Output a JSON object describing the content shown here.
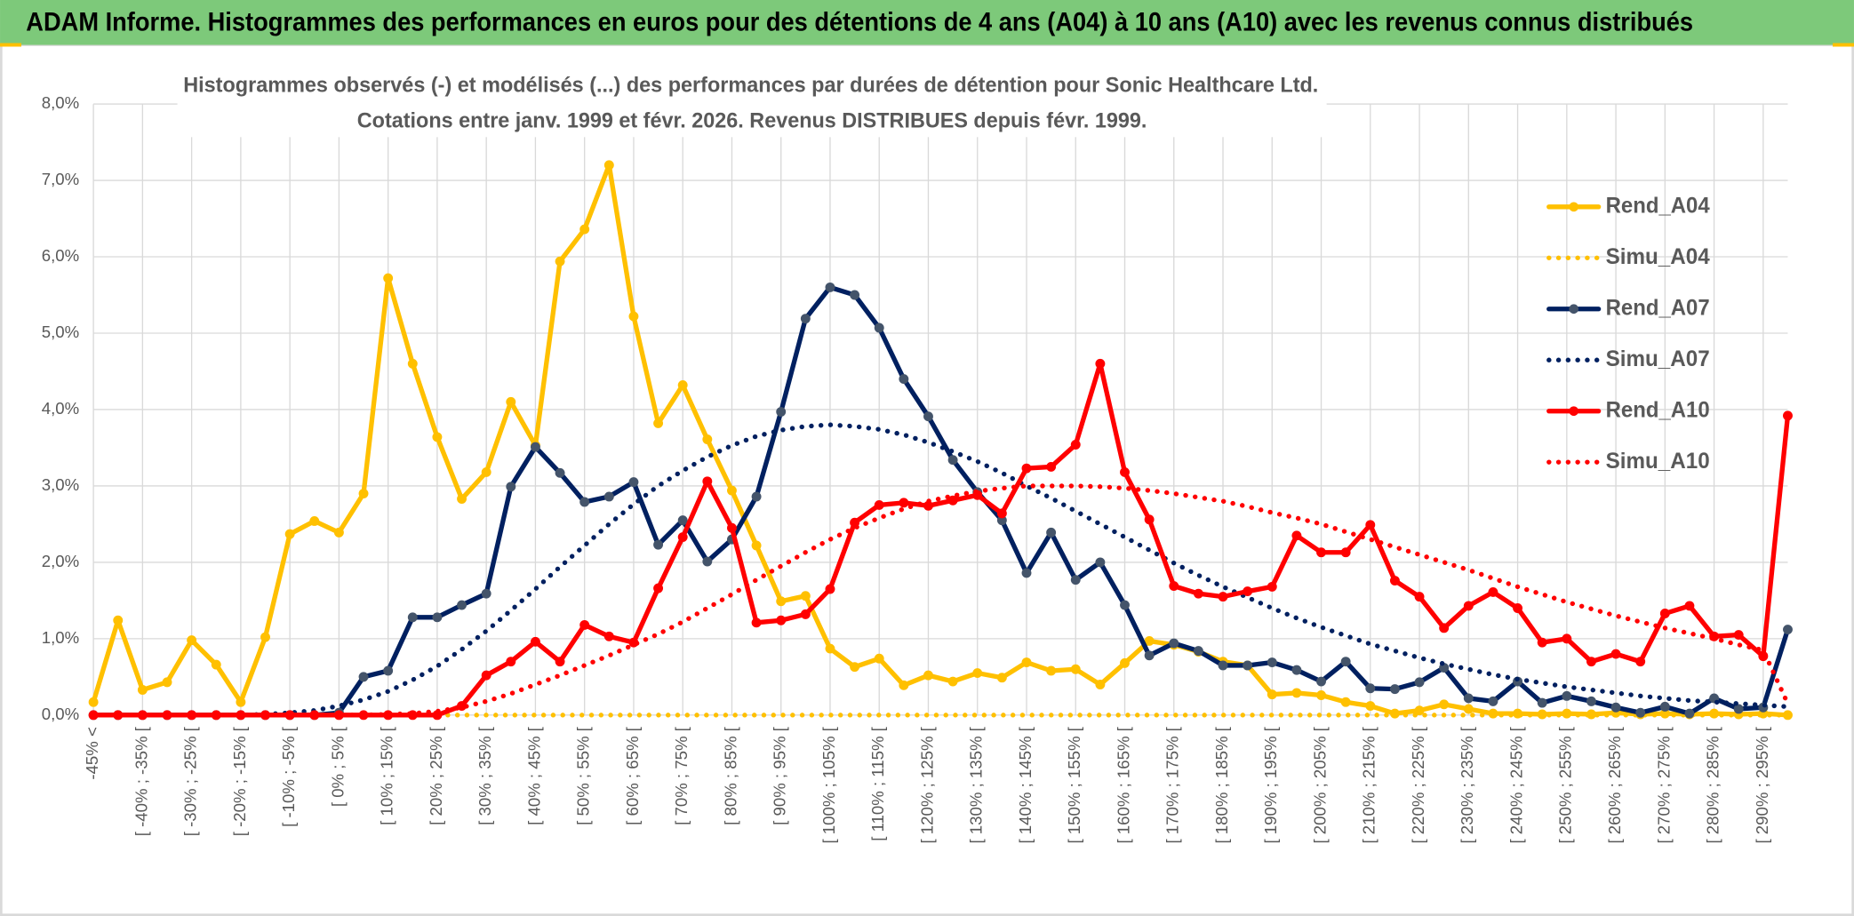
{
  "chart_data": {
    "type": "line",
    "header": "ADAM Informe. Histogrammes des performances en euros pour des détentions de 4 ans (A04) à 10 ans (A10) avec les revenus connus distribués",
    "title": "Histogrammes observés (-) et modélisés (...) des performances par durées de détention pour Sonic Healthcare Ltd.",
    "subtitle": "Cotations entre janv. 1999 et févr. 2026. Revenus DISTRIBUES depuis févr. 1999.",
    "categories": [
      "-45% <",
      null,
      "[ -40% ; -35% [",
      null,
      "[ -30% ; -25% [",
      null,
      "[ -20% ; -15% [",
      null,
      "[ -10% ; -5% [",
      null,
      "[ 0% ; 5% [",
      null,
      "[ 10% ; 15% [",
      null,
      "[ 20% ; 25% [",
      null,
      "[ 30% ; 35% [",
      null,
      "[ 40% ; 45% [",
      null,
      "[ 50% ; 55% [",
      null,
      "[ 60% ; 65% [",
      null,
      "[ 70% ; 75% [",
      null,
      "[ 80% ; 85% [",
      null,
      "[ 90% ; 95% [",
      null,
      "[ 100% ; 105% [",
      null,
      "[ 110% ; 115% [",
      null,
      "[ 120% ; 125% [",
      null,
      "[ 130% ; 135% [",
      null,
      "[ 140% ; 145% [",
      null,
      "[ 150% ; 155% [",
      null,
      "[ 160% ; 165% [",
      null,
      "[ 170% ; 175% [",
      null,
      "[ 180% ; 185% [",
      null,
      "[ 190% ; 195% [",
      null,
      "[ 200% ; 205% [",
      null,
      "[ 210% ; 215% [",
      null,
      "[ 220% ; 225% [",
      null,
      "[ 230% ; 235% [",
      null,
      "[ 240% ; 245% [",
      null,
      "[ 250% ; 255% [",
      null,
      "[ 260% ; 265% [",
      null,
      "[ 270% ; 275% [",
      null,
      "[ 280% ; 285% [",
      null,
      "[ 290% ; 295% [",
      null
    ],
    "series": [
      {
        "name": "Rend_A04",
        "color": "#ffc000",
        "line_style": "solid",
        "markers": true,
        "values": [
          0.17,
          1.24,
          0.33,
          0.43,
          0.98,
          0.66,
          0.17,
          1.02,
          2.37,
          2.54,
          2.39,
          2.9,
          5.72,
          4.6,
          3.64,
          2.83,
          3.18,
          4.1,
          3.53,
          5.94,
          6.36,
          7.2,
          5.22,
          3.82,
          4.32,
          3.61,
          2.94,
          2.22,
          1.49,
          1.56,
          0.87,
          0.63,
          0.74,
          0.39,
          0.52,
          0.44,
          0.55,
          0.49,
          0.69,
          0.58,
          0.6,
          0.4,
          0.68,
          0.97,
          0.92,
          0.83,
          0.7,
          0.65,
          0.27,
          0.29,
          0.26,
          0.17,
          0.12,
          0.02,
          0.06,
          0.14,
          0.08,
          0.02,
          0.02,
          0.01,
          0.02,
          0.01,
          0.03,
          0.01,
          0.02,
          0.01,
          0.02,
          0.01,
          0.02,
          0.0
        ]
      },
      {
        "name": "Simu_A04",
        "color": "#ffc000",
        "line_style": "dotted",
        "markers": false,
        "values": [
          0,
          0,
          0,
          0,
          0,
          0,
          0,
          0,
          0,
          0,
          0,
          0,
          0,
          0,
          0,
          0,
          0,
          0,
          0,
          0,
          0,
          0,
          0,
          0,
          0,
          0,
          0,
          0,
          0,
          0,
          0,
          0,
          0,
          0,
          0,
          0,
          0,
          0,
          0,
          0,
          0,
          0,
          0,
          0,
          0,
          0,
          0,
          0,
          0,
          0,
          0,
          0,
          0,
          0,
          0,
          0,
          0,
          0,
          0,
          0,
          0,
          0,
          0,
          0,
          0,
          0,
          0,
          0,
          0,
          0
        ]
      },
      {
        "name": "Rend_A07",
        "color": "#002060",
        "marker_color": "#44546a",
        "line_style": "solid",
        "markers": true,
        "values": [
          0,
          0,
          0,
          0,
          0,
          0,
          0,
          0,
          0,
          0,
          0.03,
          0.5,
          0.58,
          1.28,
          1.28,
          1.44,
          1.59,
          2.99,
          3.51,
          3.17,
          2.79,
          2.86,
          3.05,
          2.23,
          2.55,
          2.01,
          2.3,
          2.86,
          3.97,
          5.19,
          5.6,
          5.5,
          5.07,
          4.4,
          3.91,
          3.34,
          2.92,
          2.55,
          1.86,
          2.39,
          1.77,
          2.0,
          1.44,
          0.78,
          0.94,
          0.84,
          0.65,
          0.65,
          0.69,
          0.59,
          0.44,
          0.7,
          0.35,
          0.34,
          0.43,
          0.62,
          0.22,
          0.18,
          0.44,
          0.16,
          0.25,
          0.18,
          0.1,
          0.03,
          0.11,
          0.02,
          0.22,
          0.08,
          0.1,
          1.12
        ]
      },
      {
        "name": "Simu_A07",
        "color": "#002060",
        "line_style": "dotted",
        "markers": false,
        "values": [
          0,
          0,
          0,
          0,
          0,
          0,
          0,
          0.01,
          0.03,
          0.06,
          0.12,
          0.2,
          0.31,
          0.46,
          0.64,
          0.86,
          1.1,
          1.37,
          1.65,
          1.94,
          2.22,
          2.5,
          2.76,
          3.0,
          3.2,
          3.38,
          3.53,
          3.65,
          3.73,
          3.78,
          3.8,
          3.78,
          3.74,
          3.67,
          3.57,
          3.45,
          3.32,
          3.17,
          3.0,
          2.84,
          2.67,
          2.5,
          2.33,
          2.16,
          1.99,
          1.83,
          1.68,
          1.54,
          1.4,
          1.27,
          1.15,
          1.04,
          0.93,
          0.84,
          0.75,
          0.67,
          0.6,
          0.53,
          0.47,
          0.42,
          0.37,
          0.33,
          0.29,
          0.25,
          0.22,
          0.19,
          0.17,
          0.15,
          0.13,
          0.11
        ]
      },
      {
        "name": "Rend_A10",
        "color": "#ff0000",
        "line_style": "solid",
        "markers": true,
        "values": [
          0,
          0,
          0,
          0,
          0,
          0,
          0,
          0,
          0,
          0,
          0,
          0,
          0,
          0,
          0,
          0.12,
          0.52,
          0.7,
          0.96,
          0.7,
          1.18,
          1.03,
          0.95,
          1.66,
          2.33,
          3.06,
          2.45,
          1.21,
          1.24,
          1.32,
          1.65,
          2.52,
          2.75,
          2.78,
          2.74,
          2.81,
          2.88,
          2.64,
          3.23,
          3.25,
          3.54,
          4.6,
          3.18,
          2.56,
          1.69,
          1.59,
          1.55,
          1.62,
          1.68,
          2.35,
          2.13,
          2.13,
          2.49,
          1.76,
          1.55,
          1.14,
          1.43,
          1.61,
          1.4,
          0.95,
          1.0,
          0.7,
          0.8,
          0.7,
          1.33,
          1.43,
          1.03,
          1.05,
          0.77,
          3.92
        ]
      },
      {
        "name": "Simu_A10",
        "color": "#ff0000",
        "line_style": "dotted",
        "markers": false,
        "values": [
          0,
          0,
          0,
          0,
          0,
          0,
          0,
          0,
          0,
          0,
          0,
          0,
          0.01,
          0.02,
          0.05,
          0.1,
          0.18,
          0.28,
          0.4,
          0.52,
          0.65,
          0.78,
          0.92,
          1.06,
          1.22,
          1.4,
          1.58,
          1.77,
          1.95,
          2.13,
          2.3,
          2.45,
          2.58,
          2.7,
          2.8,
          2.87,
          2.93,
          2.97,
          3.0,
          3.0,
          3.0,
          2.99,
          2.97,
          2.94,
          2.9,
          2.85,
          2.8,
          2.73,
          2.65,
          2.58,
          2.5,
          2.4,
          2.3,
          2.2,
          2.1,
          2.0,
          1.9,
          1.79,
          1.68,
          1.58,
          1.48,
          1.39,
          1.3,
          1.22,
          1.14,
          1.07,
          1.0,
          0.92,
          0.85,
          0.15
        ]
      }
    ],
    "ylim": [
      0,
      8
    ],
    "yticks": [
      {
        "value": 0,
        "label": "0,0%"
      },
      {
        "value": 1,
        "label": "1,0%"
      },
      {
        "value": 2,
        "label": "2,0%"
      },
      {
        "value": 3,
        "label": "3,0%"
      },
      {
        "value": 4,
        "label": "4,0%"
      },
      {
        "value": 5,
        "label": "5,0%"
      },
      {
        "value": 6,
        "label": "6,0%"
      },
      {
        "value": 7,
        "label": "7,0%"
      },
      {
        "value": 8,
        "label": "8,0%"
      }
    ],
    "grid": true,
    "legend": "right"
  }
}
